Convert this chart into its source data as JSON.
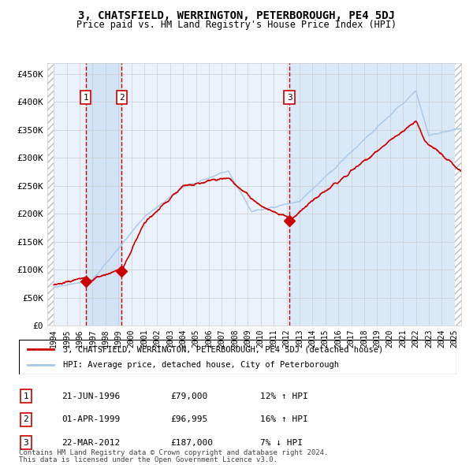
{
  "title": "3, CHATSFIELD, WERRINGTON, PETERBOROUGH, PE4 5DJ",
  "subtitle": "Price paid vs. HM Land Registry's House Price Index (HPI)",
  "legend_line1": "3, CHATSFIELD, WERRINGTON, PETERBOROUGH, PE4 5DJ (detached house)",
  "legend_line2": "HPI: Average price, detached house, City of Peterborough",
  "table_rows": [
    [
      "1",
      "21-JUN-1996",
      "£79,000",
      "12% ↑ HPI"
    ],
    [
      "2",
      "01-APR-1999",
      "£96,995",
      "16% ↑ HPI"
    ],
    [
      "3",
      "22-MAR-2012",
      "£187,000",
      "7% ↓ HPI"
    ]
  ],
  "footnote1": "Contains HM Land Registry data © Crown copyright and database right 2024.",
  "footnote2": "This data is licensed under the Open Government Licence v3.0.",
  "sale_dates": [
    1996.47,
    1999.25,
    2012.22
  ],
  "sale_prices": [
    79000,
    96995,
    187000
  ],
  "sale_labels": [
    "1",
    "2",
    "3"
  ],
  "hpi_color": "#a8c8e8",
  "price_color": "#cc0000",
  "marker_color": "#cc0000",
  "bg_color": "#eaf3fb",
  "grid_color": "#cccccc",
  "dashed_color": "#cc0000",
  "ylim": [
    0,
    470000
  ],
  "xlim": [
    1993.5,
    2025.5
  ],
  "yticks": [
    0,
    50000,
    100000,
    150000,
    200000,
    250000,
    300000,
    350000,
    400000,
    450000
  ],
  "ytick_labels": [
    "£0",
    "£50K",
    "£100K",
    "£150K",
    "£200K",
    "£250K",
    "£300K",
    "£350K",
    "£400K",
    "£450K"
  ],
  "xticks": [
    1994,
    1995,
    1996,
    1997,
    1998,
    1999,
    2000,
    2001,
    2002,
    2003,
    2004,
    2005,
    2006,
    2007,
    2008,
    2009,
    2010,
    2011,
    2012,
    2013,
    2014,
    2015,
    2016,
    2017,
    2018,
    2019,
    2020,
    2021,
    2022,
    2023,
    2024,
    2025
  ]
}
